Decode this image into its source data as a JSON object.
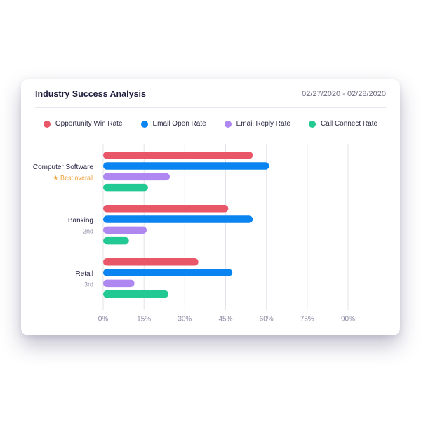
{
  "header": {
    "title": "Industry Success Analysis",
    "date_range": "02/27/2020 - 02/28/2020"
  },
  "colors": {
    "opportunity_win_rate": "#e95668",
    "email_open_rate": "#0a84f0",
    "email_reply_rate": "#ae88f0",
    "call_connect_rate": "#22c993",
    "grid": "#e3e3ea",
    "tick_label": "#8d8ca6",
    "category_label": "#1f1d3d",
    "rank_label": "#8d8ca6",
    "best_label": "#f0a03c"
  },
  "legend": [
    {
      "label": "Opportunity Win Rate",
      "color": "#e95668"
    },
    {
      "label": "Email Open Rate",
      "color": "#0a84f0"
    },
    {
      "label": "Email Reply Rate",
      "color": "#ae88f0"
    },
    {
      "label": "Call Connect Rate",
      "color": "#22c993"
    }
  ],
  "chart_data": {
    "type": "bar",
    "orientation": "horizontal",
    "categories": [
      "Computer Software",
      "Banking",
      "Retail"
    ],
    "category_sublabels": [
      "★ Best overall",
      "2nd",
      "3rd"
    ],
    "series": [
      {
        "name": "Opportunity Win Rate",
        "values": [
          55,
          46,
          35
        ]
      },
      {
        "name": "Email Open Rate",
        "values": [
          61,
          55,
          47.5
        ]
      },
      {
        "name": "Email Reply Rate",
        "values": [
          24.5,
          16,
          11.5
        ]
      },
      {
        "name": "Call Connect Rate",
        "values": [
          16.5,
          9.5,
          24
        ]
      }
    ],
    "xlim": [
      0,
      90
    ],
    "x_ticks": [
      "0%",
      "15%",
      "30%",
      "45%",
      "60%",
      "75%",
      "90%"
    ],
    "x_tick_values": [
      0,
      15,
      30,
      45,
      60,
      75,
      90
    ],
    "grid": true,
    "legend_position": "top"
  }
}
